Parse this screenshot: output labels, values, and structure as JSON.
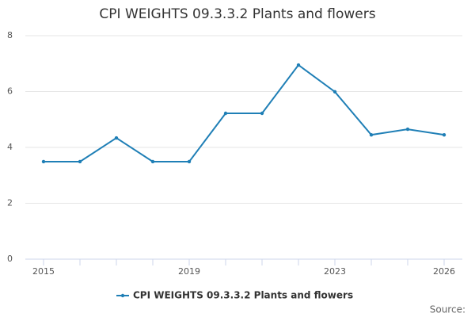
{
  "chart_data": {
    "type": "line",
    "title": "CPI WEIGHTS 09.3.3.2 Plants and flowers",
    "x": [
      2015,
      2016,
      2017,
      2018,
      2019,
      2020,
      2021,
      2022,
      2023,
      2024,
      2025,
      2026
    ],
    "series": [
      {
        "name": "CPI WEIGHTS 09.3.3.2 Plants and flowers",
        "color": "#1f7fb6",
        "values": [
          3.49,
          3.49,
          4.34,
          3.49,
          3.49,
          5.22,
          5.22,
          6.95,
          5.99,
          4.45,
          4.65,
          4.45
        ]
      }
    ],
    "xlim": [
      2014.5,
      2026.5
    ],
    "xticks": [
      2015,
      2019,
      2023,
      2026
    ],
    "ylim": [
      0,
      8
    ],
    "yticks": [
      0,
      2,
      4,
      6,
      8
    ],
    "grid": true,
    "legend": "bottom",
    "source": "Source:"
  }
}
